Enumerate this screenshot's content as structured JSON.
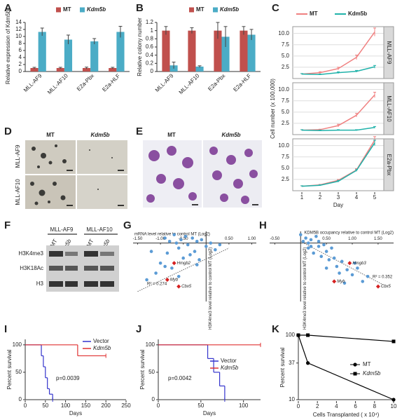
{
  "panel_letters": [
    "A",
    "B",
    "C",
    "D",
    "E",
    "F",
    "G",
    "H",
    "I",
    "J",
    "K"
  ],
  "images": {
    "D": {
      "columns": [
        "MT",
        "Kdm5b"
      ],
      "rows": [
        "MLL-AF9",
        "MLL-AF10"
      ]
    },
    "E": {
      "columns": [
        "MT",
        "Kdm5b"
      ]
    }
  },
  "blot": {
    "groups": [
      "MLL-AF9",
      "MLL-AF10"
    ],
    "lanes": [
      "MT",
      "Kdm5b",
      "MT",
      "Kdm5b"
    ],
    "rows": [
      "H3K4me3",
      "H3K18Ac",
      "H3"
    ]
  },
  "chart_data": [
    {
      "type": "bar",
      "ylabel": "Relative expression of Kdm5b",
      "categories": [
        "MLL-AF9",
        "MLL-AF10",
        "E2a-Pbx",
        "E2a-HLF"
      ],
      "series": [
        {
          "name": "MT",
          "color": "#c0504d",
          "values": [
            1,
            1,
            1,
            1
          ],
          "errors": [
            0.2,
            0.2,
            0.25,
            0.2
          ]
        },
        {
          "name": "Kdm5b",
          "color": "#4bacc6",
          "values": [
            11.3,
            9.1,
            8.6,
            11.3
          ],
          "errors": [
            1.1,
            1.3,
            0.8,
            1.6
          ]
        }
      ],
      "ylim": [
        0,
        14
      ],
      "yticks": [
        0,
        2,
        4,
        6,
        8,
        10,
        12,
        14
      ]
    },
    {
      "type": "bar",
      "ylabel": "Relative colony number",
      "categories": [
        "MLL-AF9",
        "MLL-AF10",
        "E2a-Pbx",
        "E2a-HLF"
      ],
      "series": [
        {
          "name": "MT",
          "color": "#c0504d",
          "values": [
            1,
            1,
            1,
            1
          ],
          "errors": [
            0.1,
            0.07,
            0.2,
            0.1
          ]
        },
        {
          "name": "Kdm5b",
          "color": "#4bacc6",
          "values": [
            0.15,
            0.12,
            0.85,
            0.9
          ],
          "errors": [
            0.08,
            0.02,
            0.25,
            0.13
          ]
        }
      ],
      "ylim": [
        0,
        1.2
      ],
      "yticks": [
        0,
        0.2,
        0.4,
        0.6,
        0.8,
        1,
        1.2
      ]
    },
    {
      "type": "line-facets",
      "ylabel": "Cell number (x 100,000)",
      "xlabel": "Day",
      "legend": [
        {
          "name": "MT",
          "color": "#f08080"
        },
        {
          "name": "Kdm5b",
          "color": "#20b2aa"
        }
      ],
      "x": [
        1,
        2,
        3,
        4,
        5
      ],
      "xlim": [
        0.5,
        5.5
      ],
      "xticks": [
        1,
        2,
        3,
        4,
        5
      ],
      "ylim": [
        0,
        11.5
      ],
      "yticks": [
        2.5,
        {
          "value": 5,
          "label": "5.0"
        },
        7.5,
        {
          "value": 10,
          "label": "10.0"
        }
      ],
      "grid": true,
      "facets": [
        {
          "label": "MLL-AF9",
          "series": [
            {
              "values": [
                1,
                1.3,
                2.2,
                4.7,
                10.3
              ],
              "errors": [
                0.1,
                0.2,
                0.3,
                0.5,
                0.9
              ]
            },
            {
              "values": [
                1,
                0.9,
                1.3,
                1.6,
                2.6
              ],
              "errors": [
                0.1,
                0.1,
                0.2,
                0.2,
                0.3
              ]
            }
          ]
        },
        {
          "label": "MLL-AF10",
          "series": [
            {
              "values": [
                1,
                1.1,
                2,
                4.3,
                8.8
              ],
              "errors": [
                0.1,
                0.1,
                0.3,
                0.4,
                0.6
              ]
            },
            {
              "values": [
                1,
                0.9,
                1,
                1,
                1.6
              ],
              "errors": [
                0.1,
                0.1,
                0.1,
                0.1,
                0.2
              ]
            }
          ]
        },
        {
          "label": "E2a-Pbx",
          "series": [
            {
              "values": [
                1,
                1.3,
                2.3,
                4.6,
                11.2
              ],
              "errors": [
                0.1,
                0.1,
                0.2,
                0.3,
                0.8
              ]
            },
            {
              "values": [
                1,
                1.2,
                2.1,
                4.5,
                10.6
              ],
              "errors": [
                0.1,
                0.1,
                0.2,
                0.2,
                0.6
              ]
            }
          ]
        }
      ]
    },
    {
      "type": "scatter",
      "xlabel": "mRNA level relative to control MT (Log2)",
      "ylabel": "H3K4me3 level relative to control MT (Log2)",
      "color": "#5b9bd5",
      "xlim": [
        -1.6,
        1.1
      ],
      "ylim": [
        -3.5,
        0.7
      ],
      "xticks": [
        {
          "value": -1.5,
          "label": "-1.50"
        },
        {
          "value": -1,
          "label": "-1.00"
        },
        {
          "value": -0.5,
          "label": "-0.50"
        },
        {
          "value": 0.5,
          "label": "0.50"
        },
        {
          "value": 1,
          "label": "1.00"
        }
      ],
      "x": [
        -1.3,
        -1.1,
        -1.0,
        -0.9,
        -0.85,
        -0.8,
        -0.75,
        -0.7,
        -0.6,
        -0.55,
        -0.5,
        -0.45,
        -0.4,
        -0.3,
        -0.25,
        -0.2,
        -0.15,
        -0.1,
        0.0,
        0.1,
        0.2,
        0.3,
        -0.6,
        -0.9,
        -1.2,
        -0.35,
        -0.65,
        -0.2
      ],
      "values": [
        -2.2,
        -1.8,
        -1.2,
        0.3,
        -0.6,
        0.1,
        -1.5,
        0.5,
        -0.3,
        0.2,
        -0.9,
        0.4,
        -0.1,
        0.3,
        -0.5,
        0.1,
        -1.0,
        0.2,
        -0.2,
        0.0,
        -0.4,
        -0.1,
        -2.0,
        -1.4,
        -0.5,
        -0.7,
        0.0,
        -1.3
      ],
      "highlight": {
        "color": "#d62020",
        "labels": [
          "Hmgb2",
          "Myb",
          "Cbx5"
        ],
        "x": [
          -0.7,
          -0.85,
          -0.6
        ],
        "values": [
          -1.2,
          -2.2,
          -2.6
        ]
      },
      "trendline": {
        "x": [
          -1.5,
          0.5
        ],
        "values": [
          -2.9,
          -0.3
        ]
      },
      "fit_label": "R² = 0.274"
    },
    {
      "type": "scatter",
      "xlabel": "KDM5B occupancy relative to control MT (Log2)",
      "ylabel": "H3K4me3 level relative to control MT (Log2)",
      "color": "#5b9bd5",
      "xlim": [
        -0.6,
        1.8
      ],
      "ylim": [
        -3.5,
        0.7
      ],
      "xticks": [
        {
          "value": -0.5,
          "label": "-0.50"
        },
        {
          "value": 0.5,
          "label": "0.50"
        },
        {
          "value": 1,
          "label": "1.00"
        },
        {
          "value": 1.5,
          "label": "1.50"
        }
      ],
      "x": [
        0.0,
        0.05,
        0.1,
        0.15,
        0.2,
        0.25,
        0.3,
        0.35,
        0.4,
        0.5,
        0.55,
        0.6,
        0.7,
        0.8,
        0.9,
        1.0,
        1.1,
        1.2,
        1.3,
        0.45,
        0.65,
        0.75,
        0.2,
        0.35,
        0.85,
        1.05,
        0.15,
        0.5
      ],
      "values": [
        0.5,
        0.1,
        0.3,
        -0.3,
        0.2,
        -0.6,
        0.4,
        -0.2,
        -0.8,
        -0.5,
        -1.0,
        -0.3,
        -1.4,
        -1.1,
        -1.6,
        -1.9,
        -1.5,
        -2.3,
        -2.0,
        -0.1,
        -0.9,
        -1.8,
        -0.2,
        0.1,
        -2.4,
        -1.2,
        0.0,
        -1.5
      ],
      "highlight": {
        "color": "#d62020",
        "labels": [
          "Hmgb3",
          "Myb",
          "Cbx5"
        ],
        "x": [
          0.95,
          0.65,
          1.5
        ],
        "values": [
          -1.2,
          -2.3,
          -2.6
        ]
      },
      "trendline": {
        "x": [
          0.0,
          1.6
        ],
        "values": [
          0.1,
          -2.5
        ]
      },
      "fit_label": "R² = 0.352"
    },
    {
      "type": "step",
      "xlabel": "Days",
      "ylabel": "Percent survival",
      "annotation": "p=0.0039",
      "xlim": [
        0,
        250
      ],
      "xticks": [
        0,
        50,
        100,
        150,
        200,
        250
      ],
      "ylim": [
        0,
        110
      ],
      "yticks": [
        0,
        50,
        100
      ],
      "series": [
        {
          "name": "Vector",
          "color": "#3333cc",
          "x": [
            0,
            40,
            45,
            50,
            55,
            60,
            68
          ],
          "values": [
            100,
            80,
            60,
            40,
            20,
            10,
            0
          ]
        },
        {
          "name": "Kdm5b",
          "color": "#e03030",
          "x": [
            0,
            130,
            200
          ],
          "values": [
            100,
            80,
            80
          ]
        }
      ]
    },
    {
      "type": "step",
      "xlabel": "Days",
      "ylabel": "Percent survival",
      "annotation": "p=0.0042",
      "xlim": [
        0,
        120
      ],
      "xticks": [
        0,
        50,
        100
      ],
      "ylim": [
        0,
        110
      ],
      "yticks": [
        0,
        50,
        100
      ],
      "series": [
        {
          "name": "Vector",
          "color": "#3333cc",
          "x": [
            0,
            58,
            65,
            72,
            78
          ],
          "values": [
            100,
            75,
            50,
            25,
            0
          ]
        },
        {
          "name": "Kdm5b",
          "color": "#e03030",
          "x": [
            0,
            120
          ],
          "values": [
            100,
            100
          ]
        }
      ]
    },
    {
      "type": "line",
      "xlabel": "Cells Transplanted ( x 10⁴)",
      "ylabel": "Percent survival",
      "yscale": "log",
      "xlim": [
        0,
        10
      ],
      "xticks": [
        0,
        2,
        4,
        6,
        8,
        10
      ],
      "ylim": [
        10,
        100
      ],
      "yticks": [
        10,
        37,
        100
      ],
      "series": [
        {
          "name": "MT",
          "color": "#000000",
          "marker": "circle",
          "x": [
            0,
            1,
            10
          ],
          "values": [
            100,
            37,
            10
          ]
        },
        {
          "name": "Kdm5b",
          "color": "#000000",
          "marker": "square",
          "x": [
            0,
            1,
            10
          ],
          "values": [
            100,
            100,
            80
          ]
        }
      ]
    }
  ]
}
